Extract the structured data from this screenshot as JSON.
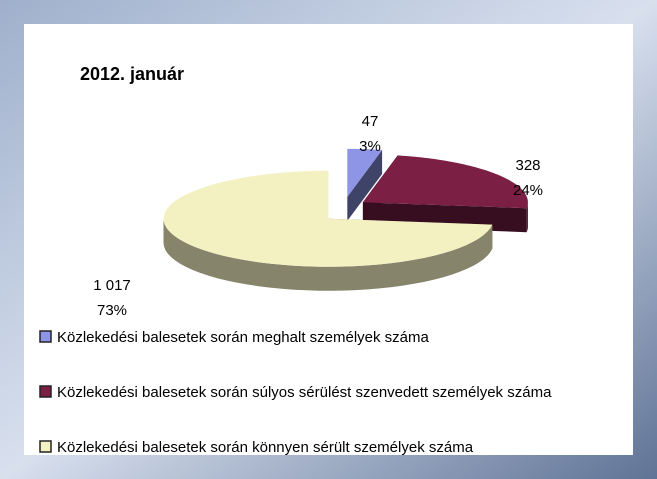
{
  "chart_data": {
    "type": "pie3d",
    "title": "2012. január",
    "categories": [
      "Közlekedési balesetek során meghalt személyek száma",
      "Közlekedési balesetek során súlyos sérülést szenvedett személyek száma",
      "Közlekedési balesetek során könnyen sérült személyek száma"
    ],
    "values": [
      47,
      328,
      1017
    ],
    "value_labels": [
      "47",
      "328",
      "1 017"
    ],
    "percents": [
      3,
      24,
      73
    ],
    "percent_labels": [
      "3%",
      "24%",
      "73%"
    ],
    "colors": [
      "#8f95e6",
      "#7b1f45",
      "#f3f0c2"
    ],
    "legend": "bottom"
  }
}
